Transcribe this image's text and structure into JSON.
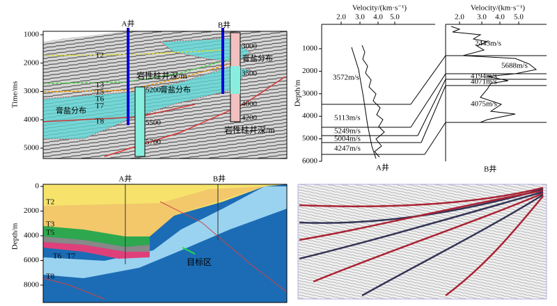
{
  "panel_a": {
    "y_axis_label": "Time/ms",
    "yticks": [
      1000,
      2000,
      3000,
      4000,
      5000
    ],
    "well_a": "A井",
    "well_b": "B井",
    "horizons": [
      "T2",
      "T3",
      "T5",
      "T6",
      "T7",
      "T8"
    ],
    "salt_labels": [
      "膏盐分布",
      "膏盐分布",
      "膏盐分布"
    ],
    "column_label_a": "岩性柱井深/m",
    "column_label_b": "岩性柱井深/m",
    "depths_a": [
      5200,
      5500,
      5700
    ],
    "depths_b": [
      3000,
      3500,
      4000,
      4200
    ]
  },
  "panel_b": {
    "x_axis_label": "Velocity/(km·s⁻¹)",
    "xticks": [
      "2.0",
      "3.0",
      "4.0",
      "5.0"
    ],
    "y_axis_label": "Depth/m",
    "yticks": [
      1000,
      2000,
      3000,
      4000,
      5000,
      6000
    ],
    "well_a": "A井",
    "well_b": "B井",
    "velocities_a": [
      "3572m/s",
      "5113m/s",
      "5249m/s",
      "5004m/s",
      "4247m/s"
    ],
    "velocities_b": [
      "2443m/s",
      "5688m/s",
      "4194m/s",
      "4071m/s",
      "4075m/s"
    ]
  },
  "panel_c": {
    "y_axis_label": "Depth/m",
    "yticks": [
      0,
      2000,
      4000,
      6000,
      8000
    ],
    "well_a": "A井",
    "well_b": "B井",
    "horizons": [
      "T2",
      "T3",
      "T5",
      "T6",
      "T7",
      "T8"
    ],
    "target": "目标区"
  }
}
